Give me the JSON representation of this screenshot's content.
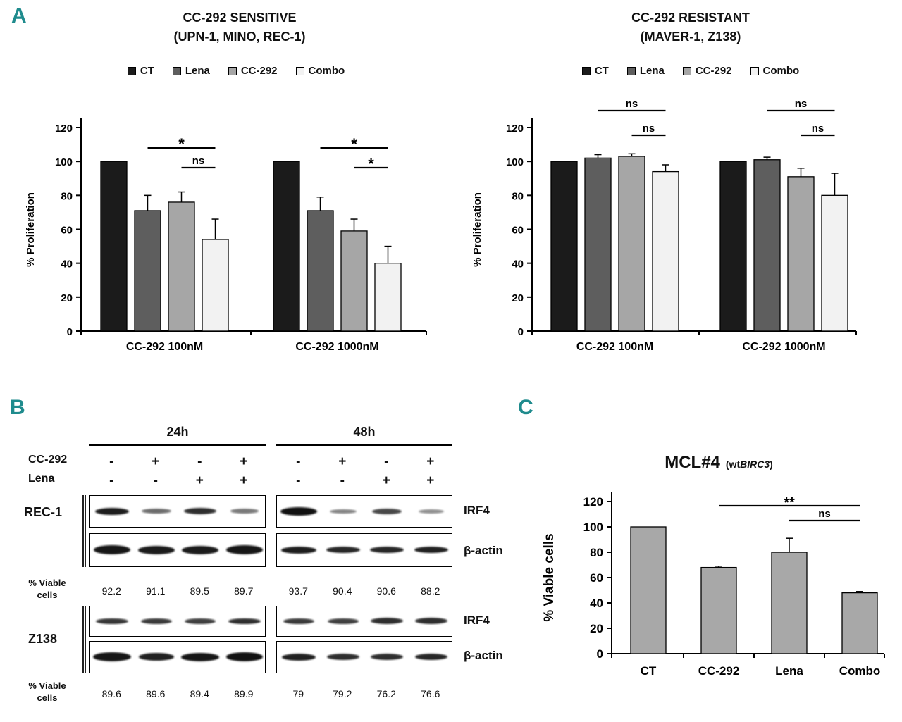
{
  "colors": {
    "panel_letter": "#1f8b8d",
    "axis": "#000000",
    "bar_ct": "#1b1b1b",
    "bar_lena": "#5e5e5e",
    "bar_cc292": "#a6a6a6",
    "bar_combo": "#f2f2f2",
    "bar_panel_c": "#a8a8a8"
  },
  "panels": {
    "a": "A",
    "b": "B",
    "c": "C"
  },
  "chart_data": [
    {
      "type": "bar",
      "panel": "A-left",
      "title_line1": "CC-292  SENSITIVE",
      "title_line2": "(UPN-1, MINO, REC-1)",
      "ylabel": "% Proliferation",
      "ymax": 120,
      "yticks": [
        0,
        20,
        40,
        60,
        80,
        100,
        120
      ],
      "legend": [
        "CT",
        "Lena",
        "CC-292",
        "Combo"
      ],
      "fills": [
        "#1b1b1b",
        "#5e5e5e",
        "#a6a6a6",
        "#f2f2f2"
      ],
      "group_labels": [
        "CC-292 100nM",
        "CC-292 1000nM"
      ],
      "series": [
        {
          "name": "CT",
          "values": [
            100,
            100
          ],
          "errors": [
            0,
            0
          ]
        },
        {
          "name": "Lena",
          "values": [
            71,
            71
          ],
          "errors": [
            9,
            8
          ]
        },
        {
          "name": "CC-292",
          "values": [
            76,
            59
          ],
          "errors": [
            6,
            7
          ]
        },
        {
          "name": "Combo",
          "values": [
            54,
            40
          ],
          "errors": [
            12,
            10
          ]
        }
      ],
      "brackets": [
        {
          "g1": 0,
          "s1": 1,
          "g2": 0,
          "s2": 3,
          "label": "*",
          "row": 0
        },
        {
          "g1": 0,
          "s1": 2,
          "g2": 0,
          "s2": 3,
          "label": "ns",
          "row": 1
        },
        {
          "g1": 1,
          "s1": 1,
          "g2": 1,
          "s2": 3,
          "label": "*",
          "row": 0
        },
        {
          "g1": 1,
          "s1": 2,
          "g2": 1,
          "s2": 3,
          "label": "*",
          "row": 1
        }
      ]
    },
    {
      "type": "bar",
      "panel": "A-right",
      "title_line1": "CC-292 RESISTANT",
      "title_line2": "(MAVER-1, Z138)",
      "ylabel": "% Proliferation",
      "ymax": 120,
      "yticks": [
        0,
        20,
        40,
        60,
        80,
        100,
        120
      ],
      "legend": [
        "CT",
        "Lena",
        "CC-292",
        "Combo"
      ],
      "fills": [
        "#1b1b1b",
        "#5e5e5e",
        "#a6a6a6",
        "#f2f2f2"
      ],
      "group_labels": [
        "CC-292 100nM",
        "CC-292 1000nM"
      ],
      "series": [
        {
          "name": "CT",
          "values": [
            100,
            100
          ],
          "errors": [
            0,
            0
          ]
        },
        {
          "name": "Lena",
          "values": [
            102,
            101
          ],
          "errors": [
            2,
            1.5
          ]
        },
        {
          "name": "CC-292",
          "values": [
            103,
            91
          ],
          "errors": [
            1.5,
            5
          ]
        },
        {
          "name": "Combo",
          "values": [
            94,
            80
          ],
          "errors": [
            4,
            13
          ]
        }
      ],
      "brackets": [
        {
          "g1": 0,
          "s1": 1,
          "g2": 0,
          "s2": 3,
          "label": "ns",
          "row": 0
        },
        {
          "g1": 0,
          "s1": 2,
          "g2": 0,
          "s2": 3,
          "label": "ns",
          "row": 1
        },
        {
          "g1": 1,
          "s1": 1,
          "g2": 1,
          "s2": 3,
          "label": "ns",
          "row": 0
        },
        {
          "g1": 1,
          "s1": 2,
          "g2": 1,
          "s2": 3,
          "label": "ns",
          "row": 1
        }
      ]
    },
    {
      "type": "bar",
      "panel": "C",
      "title_main": "MCL#4",
      "title_sub_prefix": "(wt",
      "title_sub_italic": "BIRC3",
      "title_sub_suffix": ")",
      "ylabel": "% Viable cells",
      "ymax": 120,
      "yticks": [
        0,
        20,
        40,
        60,
        80,
        100,
        120
      ],
      "fills": [
        "#a8a8a8"
      ],
      "group_labels": [
        "CT",
        "CC-292",
        "Lena",
        "Combo"
      ],
      "series": [
        {
          "name": "% Viable cells",
          "values": [
            100,
            68,
            80,
            48
          ],
          "errors": [
            0,
            1,
            11,
            1
          ]
        }
      ],
      "brackets": [
        {
          "g1": 1,
          "s1": 0,
          "g2": 3,
          "s2": 0,
          "label": "**",
          "row": 0
        },
        {
          "g1": 2,
          "s1": 0,
          "g2": 3,
          "s2": 0,
          "label": "ns",
          "row": 1
        }
      ]
    }
  ],
  "panel_b": {
    "timepoints": [
      "24h",
      "48h"
    ],
    "treatments": [
      {
        "label": "CC-292",
        "signs_24h": [
          "-",
          "+",
          "-",
          "+"
        ],
        "signs_48h": [
          "-",
          "+",
          "-",
          "+"
        ]
      },
      {
        "label": "Lena",
        "signs_24h": [
          "-",
          "-",
          "+",
          "+"
        ],
        "signs_48h": [
          "-",
          "-",
          "+",
          "+"
        ]
      }
    ],
    "viable_label": "% Viable cells",
    "cell_lines": [
      {
        "name": "REC-1",
        "irf4_label": "IRF4",
        "actin_label": "β-actin",
        "bands": {
          "irf4_24h": [
            [
              48,
              10,
              0.92
            ],
            [
              42,
              7,
              0.6
            ],
            [
              46,
              9,
              0.85
            ],
            [
              40,
              7,
              0.55
            ]
          ],
          "irf4_48h": [
            [
              52,
              12,
              0.97
            ],
            [
              38,
              6,
              0.5
            ],
            [
              42,
              8,
              0.75
            ],
            [
              36,
              6,
              0.45
            ]
          ],
          "actin_24h": [
            [
              52,
              13,
              0.95
            ],
            [
              52,
              12,
              0.93
            ],
            [
              52,
              12,
              0.93
            ],
            [
              52,
              13,
              0.95
            ]
          ],
          "actin_48h": [
            [
              50,
              10,
              0.92
            ],
            [
              48,
              9,
              0.88
            ],
            [
              48,
              9,
              0.88
            ],
            [
              48,
              9,
              0.9
            ]
          ]
        },
        "viability_24h": [
          "92.2",
          "91.1",
          "89.5",
          "89.7"
        ],
        "viability_48h": [
          "93.7",
          "90.4",
          "90.6",
          "88.2"
        ]
      },
      {
        "name": "Z138",
        "irf4_label": "IRF4",
        "actin_label": "β-actin",
        "bands": {
          "irf4_24h": [
            [
              46,
              8,
              0.82
            ],
            [
              44,
              8,
              0.8
            ],
            [
              44,
              8,
              0.78
            ],
            [
              46,
              8,
              0.85
            ]
          ],
          "irf4_48h": [
            [
              44,
              8,
              0.8
            ],
            [
              44,
              8,
              0.78
            ],
            [
              46,
              9,
              0.85
            ],
            [
              46,
              9,
              0.85
            ]
          ],
          "actin_24h": [
            [
              54,
              13,
              0.95
            ],
            [
              50,
              11,
              0.9
            ],
            [
              54,
              12,
              0.95
            ],
            [
              52,
              13,
              0.96
            ]
          ],
          "actin_48h": [
            [
              48,
              10,
              0.9
            ],
            [
              46,
              9,
              0.85
            ],
            [
              46,
              9,
              0.85
            ],
            [
              46,
              9,
              0.88
            ]
          ]
        },
        "viability_24h": [
          "89.6",
          "89.6",
          "89.4",
          "89.9"
        ],
        "viability_48h": [
          "79",
          "79.2",
          "76.2",
          "76.6"
        ]
      }
    ]
  }
}
